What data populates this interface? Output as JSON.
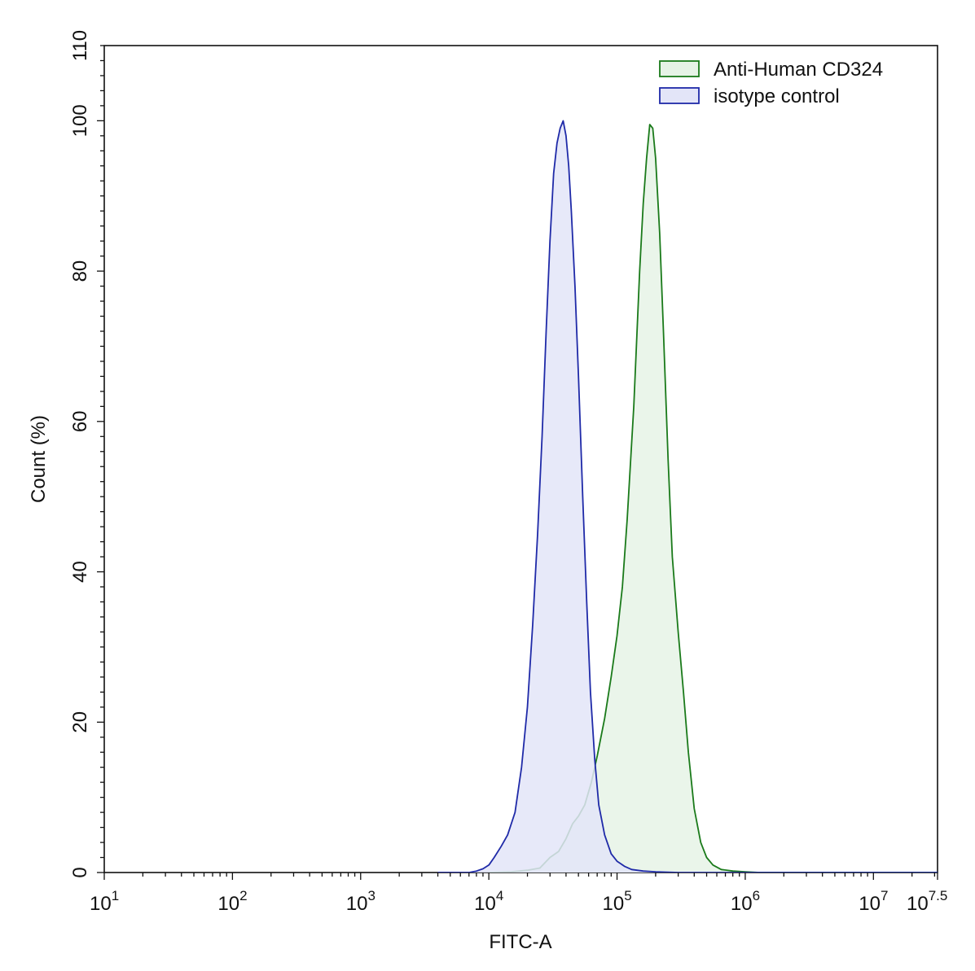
{
  "chart_data": {
    "type": "area",
    "xlabel": "FITC-A",
    "ylabel": "Count  (%)",
    "x_scale": "log10",
    "xlim": [
      10,
      31622776.6
    ],
    "ylim": [
      0,
      110
    ],
    "x_ticks": [
      {
        "base": "10",
        "exp": "1",
        "value": 10
      },
      {
        "base": "10",
        "exp": "2",
        "value": 100
      },
      {
        "base": "10",
        "exp": "3",
        "value": 1000
      },
      {
        "base": "10",
        "exp": "4",
        "value": 10000
      },
      {
        "base": "10",
        "exp": "5",
        "value": 100000
      },
      {
        "base": "10",
        "exp": "6",
        "value": 1000000
      },
      {
        "base": "10",
        "exp": "7",
        "value": 10000000
      },
      {
        "base": "10",
        "exp": "7.5",
        "value": 31622776.6
      }
    ],
    "y_ticks": [
      0,
      20,
      40,
      60,
      80,
      100,
      110
    ],
    "grid": false,
    "legend_position": "top-right",
    "series": [
      {
        "name": "Anti-Human CD324",
        "stroke": "#1a7a1a",
        "fill": "#e6f3e6",
        "x": [
          10000,
          15000,
          20000,
          25000,
          30000,
          35000,
          40000,
          45000,
          50000,
          56000,
          63000,
          70000,
          80000,
          90000,
          100000,
          110000,
          120000,
          135000,
          150000,
          160000,
          170000,
          180000,
          190000,
          200000,
          215000,
          230000,
          250000,
          270000,
          300000,
          330000,
          360000,
          400000,
          450000,
          500000,
          560000,
          650000,
          800000,
          1000000,
          1300000,
          2000000,
          5000000,
          31622776.6
        ],
        "y": [
          0,
          0.1,
          0.3,
          0.6,
          2.0,
          2.8,
          4.5,
          6.5,
          7.5,
          9.0,
          12.0,
          15.5,
          20.5,
          26.0,
          31.5,
          38.0,
          47.0,
          62.0,
          80.0,
          89.0,
          95.0,
          99.5,
          99.0,
          95.0,
          85.0,
          72.0,
          55.0,
          42.0,
          32.0,
          24.0,
          16.0,
          8.5,
          4.0,
          2.0,
          1.0,
          0.4,
          0.2,
          0.1,
          0,
          0,
          0,
          0
        ]
      },
      {
        "name": "isotype control",
        "stroke": "#1f2aa8",
        "fill": "#e3e5f8",
        "x": [
          4000,
          7000,
          8000,
          9000,
          10000,
          11000,
          12500,
          14000,
          16000,
          18000,
          20000,
          22000,
          24000,
          26000,
          28000,
          30000,
          32000,
          34000,
          36000,
          38000,
          40000,
          42000,
          44000,
          47000,
          50000,
          54000,
          58000,
          62000,
          67000,
          72000,
          80000,
          90000,
          100000,
          115000,
          130000,
          160000,
          200000,
          300000,
          31622776.6
        ],
        "y": [
          0,
          0,
          0.2,
          0.5,
          1.0,
          2.0,
          3.5,
          5.0,
          8.0,
          14.0,
          22.0,
          33.0,
          45.0,
          58.0,
          72.0,
          84.0,
          93.0,
          97.0,
          99.0,
          100.0,
          98.0,
          94.0,
          88.0,
          78.0,
          66.0,
          50.0,
          36.0,
          24.0,
          15.0,
          9.0,
          5.0,
          2.5,
          1.5,
          0.8,
          0.4,
          0.2,
          0.1,
          0,
          0
        ]
      }
    ]
  }
}
